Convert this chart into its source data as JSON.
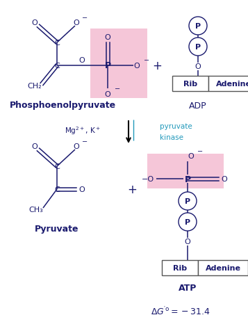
{
  "bg_color": "#ffffff",
  "pink_color": "#f5c6d8",
  "dark_blue": "#1a1a6e",
  "cyan_enzyme": "#2299bb",
  "figsize": [
    3.57,
    4.77
  ],
  "dpi": 100,
  "pep_label": "Phosphoenolpyruvate",
  "adp_label": "ADP",
  "pyruvate_label": "Pyruvate",
  "atp_label": "ATP",
  "cofactors": "Mg$^{2+}$, K$^+$",
  "enzyme_line1": "pyruvate",
  "enzyme_line2": "kinase",
  "delta_g": "$\\Delta G'^{\\circ}= -31.4$"
}
